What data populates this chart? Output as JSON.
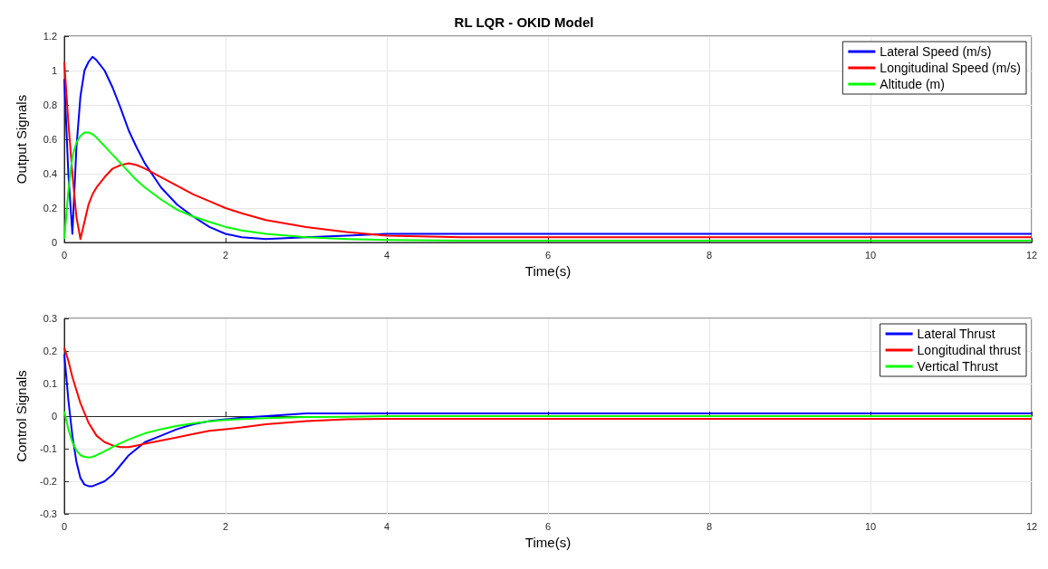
{
  "chart_data": [
    {
      "type": "line",
      "title": "RL LQR - OKID Model",
      "xlabel": "Time(s)",
      "ylabel": "Output Signals",
      "x": [
        0,
        0.05,
        0.1,
        0.15,
        0.2,
        0.25,
        0.3,
        0.35,
        0.4,
        0.5,
        0.6,
        0.7,
        0.8,
        0.9,
        1.0,
        1.2,
        1.4,
        1.6,
        1.8,
        2.0,
        2.2,
        2.5,
        3,
        3.5,
        4,
        5,
        6,
        7,
        8,
        9,
        10,
        11,
        12
      ],
      "series": [
        {
          "name": "Lateral Speed (m/s)",
          "color": "#0000ff",
          "values": [
            0.95,
            0.4,
            0.05,
            0.55,
            0.85,
            1.0,
            1.05,
            1.08,
            1.06,
            1.0,
            0.9,
            0.78,
            0.65,
            0.55,
            0.46,
            0.32,
            0.22,
            0.15,
            0.09,
            0.05,
            0.03,
            0.02,
            0.03,
            0.04,
            0.05,
            0.05,
            0.05,
            0.05,
            0.05,
            0.05,
            0.05,
            0.05,
            0.05
          ]
        },
        {
          "name": "Longitudinal Speed (m/s)",
          "color": "#ff0000",
          "values": [
            1.05,
            0.7,
            0.4,
            0.15,
            0.02,
            0.12,
            0.22,
            0.28,
            0.32,
            0.38,
            0.43,
            0.45,
            0.46,
            0.45,
            0.43,
            0.38,
            0.33,
            0.28,
            0.24,
            0.2,
            0.17,
            0.13,
            0.09,
            0.06,
            0.04,
            0.03,
            0.03,
            0.03,
            0.03,
            0.03,
            0.03,
            0.03,
            0.03
          ]
        },
        {
          "name": "Altitude (m)",
          "color": "#00ff00",
          "values": [
            0.02,
            0.3,
            0.5,
            0.58,
            0.62,
            0.64,
            0.64,
            0.63,
            0.61,
            0.56,
            0.51,
            0.46,
            0.41,
            0.36,
            0.32,
            0.25,
            0.19,
            0.15,
            0.12,
            0.09,
            0.07,
            0.05,
            0.03,
            0.02,
            0.015,
            0.01,
            0.01,
            0.01,
            0.01,
            0.01,
            0.01,
            0.01,
            0.01
          ]
        }
      ],
      "xlim": [
        0,
        12
      ],
      "xticks": [
        0,
        2,
        4,
        6,
        8,
        10,
        12
      ],
      "ylim": [
        0,
        1.2
      ],
      "yticks": [
        0,
        0.2,
        0.4,
        0.6,
        0.8,
        1,
        1.2
      ],
      "grid": true,
      "legend": "top right",
      "marker": "none",
      "line_style": "solid"
    },
    {
      "type": "line",
      "xlabel": "Time(s)",
      "ylabel": "Control Signals",
      "x": [
        0,
        0.05,
        0.1,
        0.15,
        0.2,
        0.25,
        0.3,
        0.35,
        0.4,
        0.5,
        0.6,
        0.7,
        0.8,
        0.9,
        1.0,
        1.2,
        1.4,
        1.6,
        1.8,
        2.0,
        2.2,
        2.5,
        3,
        3.5,
        4,
        5,
        6,
        7,
        8,
        9,
        10,
        11,
        12
      ],
      "series": [
        {
          "name": "Lateral Thrust",
          "color": "#0000ff",
          "values": [
            0.19,
            0.05,
            -0.06,
            -0.14,
            -0.19,
            -0.21,
            -0.215,
            -0.215,
            -0.21,
            -0.2,
            -0.18,
            -0.15,
            -0.12,
            -0.1,
            -0.08,
            -0.06,
            -0.04,
            -0.025,
            -0.015,
            -0.01,
            -0.005,
            0,
            0.008,
            0.008,
            0.008,
            0.008,
            0.008,
            0.008,
            0.008,
            0.008,
            0.008,
            0.008,
            0.008
          ]
        },
        {
          "name": "Longitudinal thrust",
          "color": "#ff0000",
          "values": [
            0.21,
            0.17,
            0.12,
            0.08,
            0.04,
            0.01,
            -0.02,
            -0.04,
            -0.06,
            -0.08,
            -0.09,
            -0.095,
            -0.095,
            -0.09,
            -0.085,
            -0.075,
            -0.065,
            -0.055,
            -0.045,
            -0.04,
            -0.035,
            -0.025,
            -0.015,
            -0.01,
            -0.008,
            -0.008,
            -0.008,
            -0.008,
            -0.008,
            -0.008,
            -0.008,
            -0.008,
            -0.008
          ]
        },
        {
          "name": "Vertical Thrust",
          "color": "#00ff00",
          "values": [
            0.015,
            -0.04,
            -0.08,
            -0.105,
            -0.12,
            -0.125,
            -0.127,
            -0.125,
            -0.12,
            -0.108,
            -0.095,
            -0.083,
            -0.072,
            -0.062,
            -0.053,
            -0.04,
            -0.03,
            -0.022,
            -0.016,
            -0.012,
            -0.009,
            -0.006,
            -0.003,
            -0.002,
            0,
            0,
            0,
            0,
            0,
            0,
            0,
            0,
            0
          ]
        }
      ],
      "xlim": [
        0,
        12
      ],
      "xticks": [
        0,
        2,
        4,
        6,
        8,
        10,
        12
      ],
      "ylim": [
        -0.3,
        0.3
      ],
      "yticks": [
        -0.3,
        -0.2,
        -0.1,
        0,
        0.1,
        0.2,
        0.3
      ],
      "grid": true,
      "legend": "top right",
      "marker": "none",
      "line_style": "solid"
    }
  ]
}
